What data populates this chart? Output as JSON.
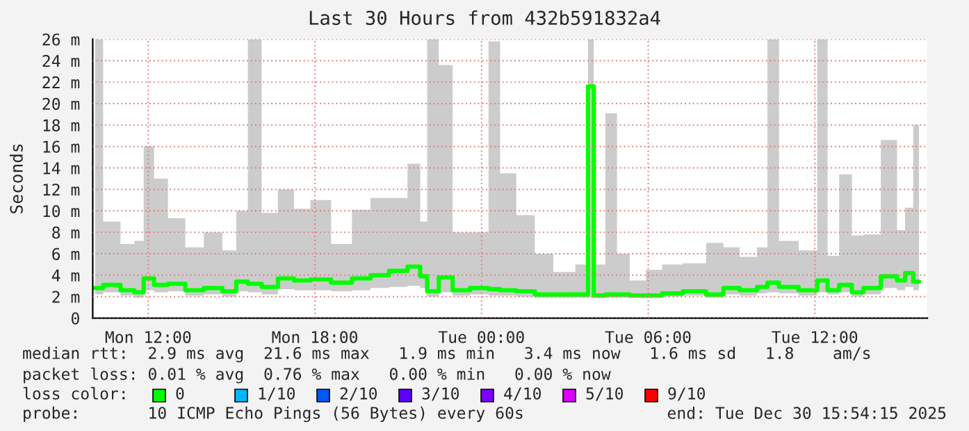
{
  "chart_data": {
    "type": "step",
    "title": "Last 30 Hours from 432b591832a4",
    "ylabel": "Seconds",
    "x": [
      "2025-12-29T10:05",
      "2025-12-29T10:40",
      "2025-12-29T11:20",
      "2025-12-29T11:40",
      "2025-12-29T12:00",
      "2025-12-29T12:25",
      "2025-12-29T13:00",
      "2025-12-29T13:40",
      "2025-12-29T14:20",
      "2025-12-29T15:00",
      "2025-12-29T15:20",
      "2025-12-29T15:50",
      "2025-12-29T16:20",
      "2025-12-29T17:00",
      "2025-12-29T17:30",
      "2025-12-29T18:10",
      "2025-12-29T19:00",
      "2025-12-29T19:40",
      "2025-12-29T20:20",
      "2025-12-29T21:00",
      "2025-12-29T21:40",
      "2025-12-29T21:55",
      "2025-12-29T22:10",
      "2025-12-29T22:45",
      "2025-12-29T23:10",
      "2025-12-30T00:00",
      "2025-12-30T00:30",
      "2025-12-30T00:50",
      "2025-12-30T01:40",
      "2025-12-30T02:10",
      "2025-12-30T03:00",
      "2025-12-30T03:45",
      "2025-12-30T03:55",
      "2025-12-30T04:10",
      "2025-12-30T04:45",
      "2025-12-30T05:00",
      "2025-12-30T05:40",
      "2025-12-30T06:10",
      "2025-12-30T06:50",
      "2025-12-30T07:40",
      "2025-12-30T08:30",
      "2025-12-30T08:55",
      "2025-12-30T09:40",
      "2025-12-30T10:10",
      "2025-12-30T10:25",
      "2025-12-30T11:00",
      "2025-12-30T11:50",
      "2025-12-30T12:20",
      "2025-12-30T12:35",
      "2025-12-30T13:10",
      "2025-12-30T13:30",
      "2025-12-30T14:00",
      "2025-12-30T14:45",
      "2025-12-30T15:10",
      "2025-12-30T15:20",
      "2025-12-30T15:45"
    ],
    "series": [
      {
        "color": "#00ff00",
        "values": [
          2.8,
          3.1,
          2.6,
          2.4,
          3.7,
          3.1,
          3.2,
          2.6,
          2.8,
          2.5,
          3.4,
          3.2,
          2.9,
          3.7,
          3.5,
          3.6,
          3.3,
          3.7,
          4.0,
          4.4,
          4.8,
          3.9,
          2.5,
          3.8,
          2.6,
          2.8,
          2.7,
          2.6,
          2.5,
          2.2,
          2.2,
          2.2,
          21.6,
          2.1,
          2.2,
          2.2,
          2.1,
          2.1,
          2.3,
          2.5,
          2.2,
          2.8,
          2.6,
          2.9,
          3.3,
          2.9,
          2.6,
          3.5,
          2.6,
          3.1,
          2.4,
          2.8,
          3.9,
          3.5,
          4.2,
          3.4
        ],
        "lower": [
          2.2,
          2.4,
          2.1,
          1.9,
          2.6,
          2.4,
          2.5,
          2.1,
          2.2,
          2.0,
          2.5,
          2.4,
          2.2,
          2.7,
          2.6,
          2.6,
          2.5,
          2.6,
          2.8,
          2.9,
          3.0,
          2.8,
          2.0,
          2.4,
          2.1,
          2.2,
          2.1,
          2.1,
          2.0,
          1.9,
          1.9,
          1.9,
          1.9,
          1.9,
          1.9,
          1.9,
          1.9,
          1.9,
          2.0,
          2.1,
          1.9,
          2.2,
          2.1,
          2.3,
          2.4,
          2.3,
          2.1,
          2.4,
          2.2,
          2.4,
          2.0,
          2.2,
          2.8,
          2.6,
          2.9,
          2.6
        ],
        "upper": [
          26,
          9,
          6.9,
          7.2,
          16,
          13,
          9.3,
          6.6,
          8,
          6.3,
          10,
          26,
          9.8,
          12,
          10.2,
          11,
          6.9,
          10.1,
          11.2,
          11.2,
          14.4,
          9,
          26,
          23.6,
          8,
          8,
          25.8,
          13.5,
          9.6,
          6,
          4.3,
          5,
          26,
          5,
          19.1,
          6,
          3.5,
          4.5,
          5,
          5.1,
          7,
          6.6,
          5.7,
          6.6,
          26,
          7.2,
          6.3,
          26,
          5.8,
          13.4,
          7.7,
          7.8,
          16.6,
          8.2,
          10.3,
          18
        ]
      }
    ],
    "xlim": [
      "2025-12-29T10:00",
      "2025-12-30T16:03"
    ],
    "xticks": [
      {
        "value": "2025-12-29T12:00",
        "label": "Mon 12:00"
      },
      {
        "value": "2025-12-29T18:00",
        "label": "Mon 18:00"
      },
      {
        "value": "2025-12-30T00:00",
        "label": "Tue 00:00"
      },
      {
        "value": "2025-12-30T06:00",
        "label": "Tue 06:00"
      },
      {
        "value": "2025-12-30T12:00",
        "label": "Tue 12:00"
      }
    ],
    "ylim": [
      0,
      26
    ],
    "yticks": [
      0,
      {
        "value": 2,
        "label": "2 m"
      },
      {
        "value": 4,
        "label": "4 m"
      },
      {
        "value": 6,
        "label": "6 m"
      },
      {
        "value": 8,
        "label": "8 m"
      },
      {
        "value": 10,
        "label": "10 m"
      },
      {
        "value": 12,
        "label": "12 m"
      },
      {
        "value": 14,
        "label": "14 m"
      },
      {
        "value": 16,
        "label": "16 m"
      },
      {
        "value": 18,
        "label": "18 m"
      },
      {
        "value": 20,
        "label": "20 m"
      },
      {
        "value": 22,
        "label": "22 m"
      },
      {
        "value": 24,
        "label": "24 m"
      },
      {
        "value": 26,
        "label": "26 m"
      }
    ],
    "grid": true,
    "annotations": [
      "median rtt:  2.9 ms avg  21.6 ms max   1.9 ms min   3.4 ms now   1.6 ms sd   1.8    am/s",
      "packet loss: 0.01 % avg  0.76 % max   0.00 % min   0.00 % now",
      "loss color:",
      "0",
      "1/10",
      "2/10",
      "3/10",
      "4/10",
      "5/10",
      "9/10",
      "probe:       10 ICMP Echo Pings (56 Bytes) every 60s",
      "end: Tue Dec 30 15:54:15 2025"
    ]
  }
}
